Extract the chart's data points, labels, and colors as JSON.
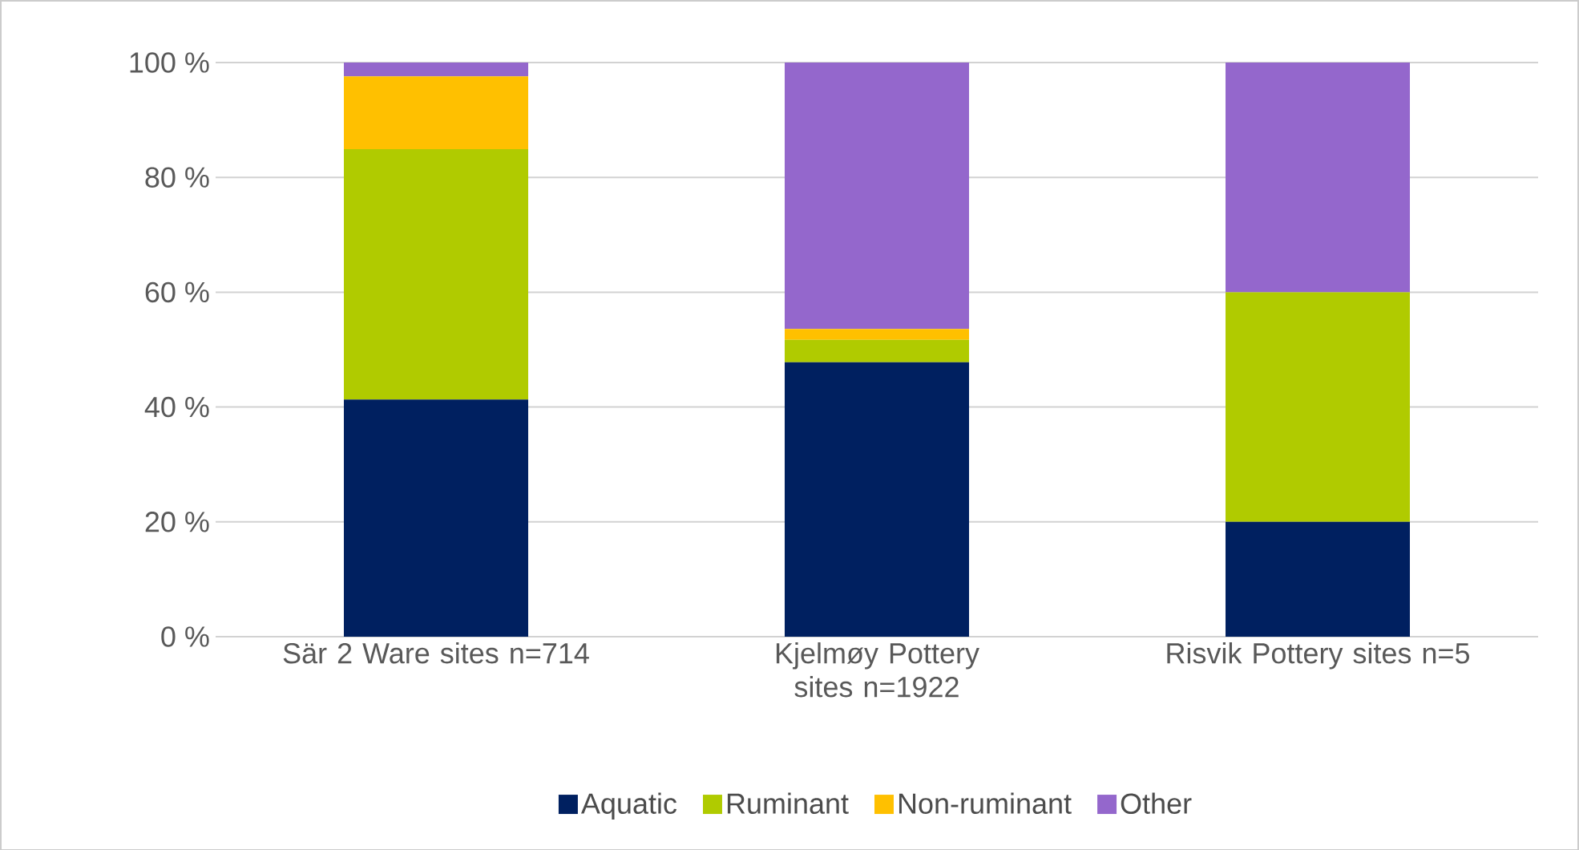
{
  "chart_data": {
    "type": "bar",
    "stacked": true,
    "categories": [
      "Sär 2 Ware sites n=714",
      "Kjelmøy Pottery sites n=1922",
      "Risvik Pottery sites n=5"
    ],
    "series": [
      {
        "name": "Aquatic",
        "color": "#002060",
        "values": [
          41.3,
          47.8,
          20
        ]
      },
      {
        "name": "Ruminant",
        "color": "#b0cb00",
        "values": [
          43.6,
          3.9,
          40
        ]
      },
      {
        "name": "Non-ruminant",
        "color": "#ffc000",
        "values": [
          12.7,
          1.9,
          0
        ]
      },
      {
        "name": "Other",
        "color": "#9467cc",
        "values": [
          2.4,
          46.4,
          40
        ]
      }
    ],
    "ylim": [
      0,
      100
    ],
    "yticks": [
      {
        "value": 0,
        "label": "0 %"
      },
      {
        "value": 20,
        "label": "20 %"
      },
      {
        "value": 40,
        "label": "40 %"
      },
      {
        "value": 60,
        "label": "60 %"
      },
      {
        "value": 80,
        "label": "80 %"
      },
      {
        "value": 100,
        "label": "100 %"
      }
    ],
    "grid": "y",
    "legend": "bottom"
  }
}
